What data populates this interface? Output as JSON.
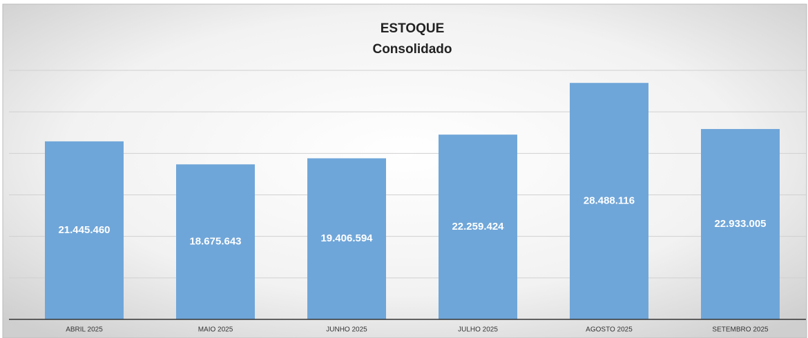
{
  "chart_data": {
    "type": "bar",
    "title": "ESTOQUE",
    "subtitle": "Consolidado",
    "categories": [
      "ABRIL 2025",
      "MAIO 2025",
      "JUNHO 2025",
      "JULHO 2025",
      "AGOSTO 2025",
      "SETEMBRO 2025"
    ],
    "values": [
      21445460,
      18675643,
      19406594,
      22259424,
      28488116,
      22933005
    ],
    "value_labels": [
      "21.445.460",
      "18.675.643",
      "19.406.594",
      "22.259.424",
      "28.488.116",
      "22.933.005"
    ],
    "color": "#6fa6d9",
    "ylim": [
      0,
      30000000
    ],
    "yticks": [
      0,
      5000000,
      10000000,
      15000000,
      20000000,
      25000000,
      30000000
    ],
    "grid": true
  }
}
